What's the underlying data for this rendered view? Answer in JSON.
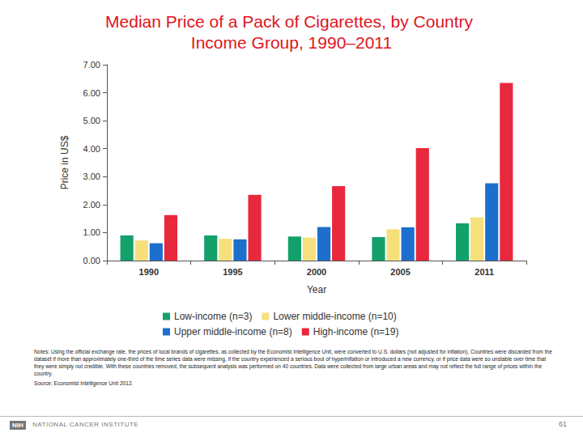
{
  "chart_data": {
    "type": "bar",
    "title": "Median Price of a Pack of Cigarettes, by Country Income Group, 1990–2011",
    "x_label": "Year",
    "y_label": "Price in US$",
    "categories": [
      "1990",
      "1995",
      "2000",
      "2005",
      "2011"
    ],
    "series": [
      {
        "name": "Low-income (n=3)",
        "color": "#13a06b",
        "values": [
          0.9,
          0.9,
          0.86,
          0.84,
          1.33
        ]
      },
      {
        "name": "Lower middle-income (n=10)",
        "color": "#f5e07c",
        "values": [
          0.72,
          0.78,
          0.82,
          1.12,
          1.55
        ]
      },
      {
        "name": "Upper middle-income (n=8)",
        "color": "#1c6fcc",
        "values": [
          0.62,
          0.76,
          1.2,
          1.19,
          2.76
        ]
      },
      {
        "name": "High-income (n=19)",
        "color": "#e8283c",
        "values": [
          1.63,
          2.35,
          2.66,
          4.02,
          6.35
        ]
      }
    ],
    "ylim": [
      0,
      7
    ],
    "yticks": [
      {
        "value": 0,
        "label": "0.00"
      },
      {
        "value": 1,
        "label": "1.00"
      },
      {
        "value": 2,
        "label": "2.00"
      },
      {
        "value": 3,
        "label": "3.00"
      },
      {
        "value": 4,
        "label": "4.00"
      },
      {
        "value": 5,
        "label": "5.00"
      },
      {
        "value": 6,
        "label": "6.00"
      },
      {
        "value": 7,
        "label": "7.00"
      }
    ],
    "grid": false,
    "legend": "bottom",
    "data_labels": false,
    "notes": "Notes: Using the official exchange rate, the prices of local brands of cigarettes, as collected by the Economist Intelligence Unit, were converted to U.S. dollars (not adjusted for inflation). Countries were discarded from the dataset if more than approximately one-third of the time series data were missing, if the country experienced a serious bout of hyperinflation or introduced a new currency, or if price data were so unstable over time that they were simply not credible. With these countries removed, the subsequent analysis was performed on 40 countries. Data were collected from large urban areas and may not reflect the full range of prices within the country.",
    "source": "Source: Economist Intelligence Unit 2012.",
    "footer": {
      "logo": "NIH",
      "text": "NATIONAL CANCER INSTITUTE",
      "page": "61"
    }
  }
}
